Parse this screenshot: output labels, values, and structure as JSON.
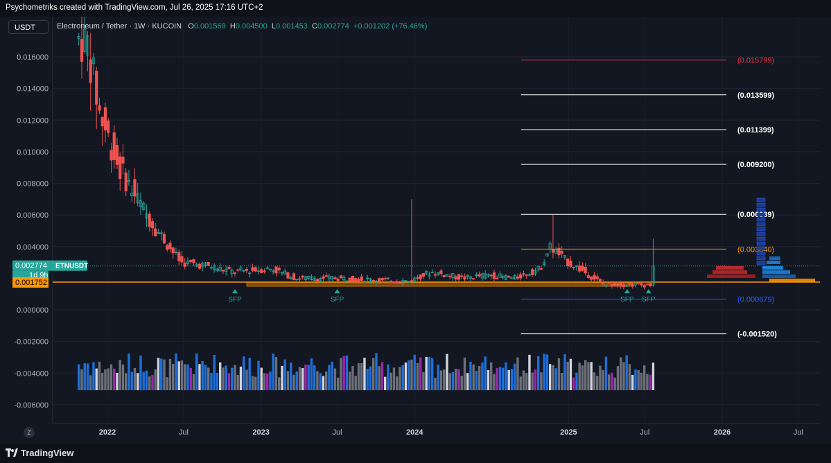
{
  "header": {
    "caption": "Psychometriks created with TradingView.com, Jul 26, 2025 17:16 UTC+2"
  },
  "footer": {
    "brand": "TradingView"
  },
  "symbol_box": "USDT",
  "zoom_button": "Z",
  "legend": {
    "title": "Electroneum / Tether · 1W · KUCOIN",
    "o_label": "O",
    "o": "0.001569",
    "h_label": "H",
    "h": "0.004500",
    "l_label": "L",
    "l": "0.001453",
    "c_label": "C",
    "c": "0.002774",
    "change": "+0.001202 (+76.46%)"
  },
  "colors": {
    "background": "#131722",
    "up": "#26a69a",
    "down": "#ef5350",
    "orange": "#ff9800",
    "blue_line": "#2962ff",
    "red_line": "#f23645"
  },
  "chart_data": {
    "type": "candlestick",
    "title": "Electroneum / Tether · 1W · KUCOIN",
    "ylim": [
      -0.0068,
      0.0172
    ],
    "y_ticks": [
      "0.016000",
      "0.014000",
      "0.012000",
      "0.010000",
      "0.008000",
      "0.006000",
      "0.004000",
      "0.000000",
      "-0.002000",
      "-0.004000",
      "-0.006000"
    ],
    "x_ticks": [
      "2022",
      "Jul",
      "2023",
      "Jul",
      "2024",
      "2025",
      "Jul",
      "2026",
      "Jul"
    ],
    "price_badges": [
      {
        "label": "0.002774",
        "sub": "ETNUSDT",
        "countdown": "1d 9h",
        "value": 0.002774,
        "color": "#26a69a"
      },
      {
        "label": "0.001752",
        "value": 0.001752,
        "color": "#ff9800"
      }
    ],
    "levels": [
      {
        "label": "(0.015799)",
        "value": 0.015799,
        "color": "#f23645"
      },
      {
        "label": "(0.013599)",
        "value": 0.013599,
        "color": "#ffffff"
      },
      {
        "label": "(0.011399)",
        "value": 0.011399,
        "color": "#ffffff"
      },
      {
        "label": "(0.009200)",
        "value": 0.0092,
        "color": "#ffffff"
      },
      {
        "label": "(0.006039)",
        "value": 0.006039,
        "color": "#ffffff"
      },
      {
        "label": "(0.003840)",
        "value": 0.00384,
        "color": "#ff9800"
      },
      {
        "label": "(0.000679)",
        "value": 0.000679,
        "color": "#2962ff"
      },
      {
        "label": "(-0.001520)",
        "value": -0.00152,
        "color": "#ffffff"
      }
    ],
    "annotations": [
      {
        "label": "SFP",
        "date": "2022-10-31"
      },
      {
        "label": "SFP",
        "date": "2023-07-01"
      },
      {
        "label": "SFP",
        "date": "2025-05-20"
      },
      {
        "label": "SFP",
        "date": "2025-07-10"
      }
    ],
    "series": [
      {
        "name": "ETNUSDT",
        "period": "1W",
        "start": "2021-10-25",
        "end": "2025-07-26",
        "last": {
          "open": 0.001569,
          "high": 0.0045,
          "low": 0.001453,
          "close": 0.002774
        }
      }
    ]
  }
}
